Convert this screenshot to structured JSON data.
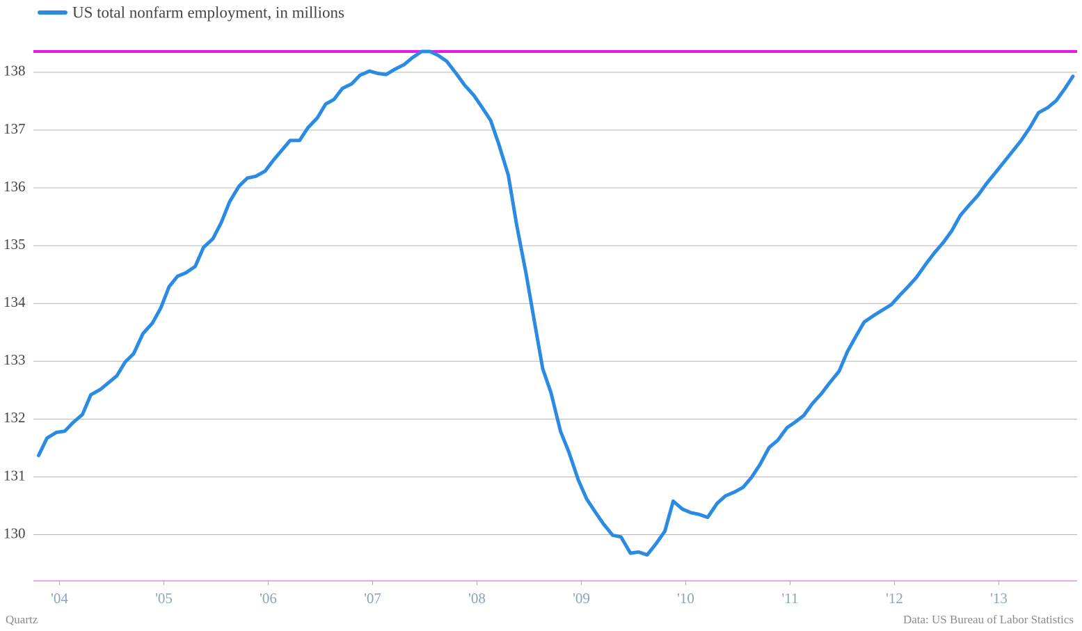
{
  "chart_data": {
    "type": "line",
    "source": "Data: US Bureau of Labor Statistics",
    "credit": "Quartz",
    "x": [
      2004.3,
      2004.38,
      2004.47,
      2004.55,
      2004.63,
      2004.72,
      2004.8,
      2004.89,
      2004.97,
      2005.05,
      2005.13,
      2005.21,
      2005.3,
      2005.39,
      2005.47,
      2005.55,
      2005.63,
      2005.71,
      2005.8,
      2005.88,
      2005.97,
      2006.05,
      2006.13,
      2006.22,
      2006.3,
      2006.38,
      2006.47,
      2006.55,
      2006.63,
      2006.71,
      2006.8,
      2006.88,
      2006.97,
      2007.05,
      2007.13,
      2007.21,
      2007.3,
      2007.38,
      2007.47,
      2007.55,
      2007.63,
      2007.71,
      2007.8,
      2007.88,
      2007.97,
      2008.05,
      2008.13,
      2008.21,
      2008.3,
      2008.38,
      2008.47,
      2008.55,
      2008.63,
      2008.71,
      2008.8,
      2008.88,
      2008.97,
      2009.05,
      2009.13,
      2009.21,
      2009.3,
      2009.38,
      2009.47,
      2009.55,
      2009.63,
      2009.71,
      2009.8,
      2009.88,
      2009.97,
      2010.05,
      2010.13,
      2010.21,
      2010.3,
      2010.38,
      2010.47,
      2010.55,
      2010.63,
      2010.71,
      2010.8,
      2010.88,
      2010.97,
      2011.05,
      2011.13,
      2011.21,
      2011.3,
      2011.38,
      2011.47,
      2011.55,
      2011.63,
      2011.71,
      2011.8,
      2011.88,
      2011.97,
      2012.05,
      2012.13,
      2012.21,
      2012.3,
      2012.38,
      2012.47,
      2012.55,
      2012.63,
      2012.71,
      2012.8,
      2012.88,
      2012.97,
      2013.05,
      2013.13,
      2013.21,
      2013.3,
      2013.38,
      2013.47,
      2013.55,
      2013.63,
      2013.71,
      2013.8,
      2013.88,
      2013.97,
      2014.05,
      2014.13,
      2014.21
    ],
    "series": [
      {
        "name": "US total nonfarm employment, in millions",
        "color": "#2b8be2",
        "values": [
          131.37,
          131.67,
          131.77,
          131.79,
          131.94,
          132.08,
          132.42,
          132.51,
          132.63,
          132.75,
          132.99,
          133.13,
          133.48,
          133.66,
          133.92,
          134.29,
          134.47,
          134.53,
          134.64,
          134.97,
          135.12,
          135.4,
          135.76,
          136.03,
          136.17,
          136.2,
          136.29,
          136.48,
          136.65,
          136.82,
          136.82,
          137.04,
          137.21,
          137.45,
          137.53,
          137.72,
          137.8,
          137.95,
          138.02,
          137.98,
          137.96,
          138.05,
          138.13,
          138.25,
          138.36,
          138.36,
          138.29,
          138.19,
          137.98,
          137.78,
          137.6,
          137.39,
          137.17,
          136.75,
          136.22,
          135.36,
          134.52,
          133.69,
          132.87,
          132.45,
          131.79,
          131.43,
          130.95,
          130.62,
          130.4,
          130.19,
          129.99,
          129.96,
          129.68,
          129.7,
          129.65,
          129.83,
          130.06,
          130.58,
          130.44,
          130.38,
          130.35,
          130.3,
          130.54,
          130.67,
          130.74,
          130.82,
          130.99,
          131.21,
          131.51,
          131.63,
          131.85,
          131.95,
          132.06,
          132.26,
          132.44,
          132.63,
          132.83,
          133.17,
          133.43,
          133.68,
          133.79,
          133.88,
          133.98,
          134.14,
          134.29,
          134.45,
          134.68,
          134.87,
          135.06,
          135.26,
          135.52,
          135.69,
          135.87,
          136.07,
          136.27,
          136.45,
          136.63,
          136.81,
          137.05,
          137.3,
          137.39,
          137.51,
          137.71,
          137.93
        ]
      }
    ],
    "reference_line": {
      "value": 138.36,
      "color": "#e619e6"
    },
    "xlim": [
      2004.25,
      2014.25
    ],
    "xticks": [
      {
        "value": 2004.5,
        "label": "'04"
      },
      {
        "value": 2005.5,
        "label": "'05"
      },
      {
        "value": 2006.5,
        "label": "'06"
      },
      {
        "value": 2007.5,
        "label": "'07"
      },
      {
        "value": 2008.5,
        "label": "'08"
      },
      {
        "value": 2009.5,
        "label": "'09"
      },
      {
        "value": 2010.5,
        "label": "'10"
      },
      {
        "value": 2011.5,
        "label": "'11"
      },
      {
        "value": 2012.5,
        "label": "'12"
      },
      {
        "value": 2013.5,
        "label": "'13"
      }
    ],
    "ylim": [
      129.2,
      139.25
    ],
    "yticks": [
      130,
      131,
      132,
      133,
      134,
      135,
      136,
      137,
      138
    ],
    "grid": true
  }
}
